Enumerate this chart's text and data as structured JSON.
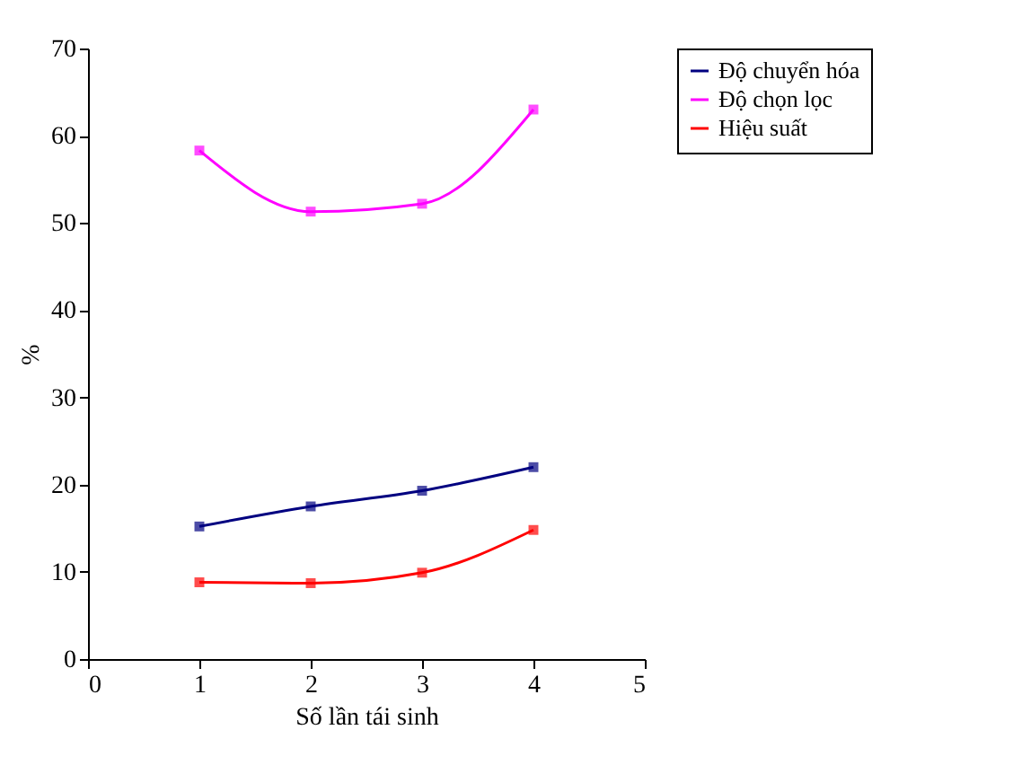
{
  "chart_data": {
    "type": "line",
    "xlabel": "Số lần tái sinh",
    "ylabel": "%",
    "x": [
      1,
      2,
      3,
      4
    ],
    "xlim": [
      0,
      5
    ],
    "xticks": [
      0,
      1,
      2,
      3,
      4,
      5
    ],
    "ylim": [
      0,
      70
    ],
    "yticks": [
      0,
      10,
      20,
      30,
      40,
      50,
      60,
      70
    ],
    "grid": false,
    "legend": "right",
    "marker": "square",
    "series": [
      {
        "name": "Độ chuyển hóa",
        "color": "#000080",
        "values": [
          15.2,
          17.5,
          19.3,
          22
        ]
      },
      {
        "name": "Độ chọn lọc",
        "color": "#ff00ff",
        "values": [
          58.3,
          51.3,
          52.2,
          63
        ]
      },
      {
        "name": "Hiệu suất",
        "color": "#ff0000",
        "values": [
          8.8,
          8.7,
          9.9,
          14.8
        ]
      }
    ]
  }
}
